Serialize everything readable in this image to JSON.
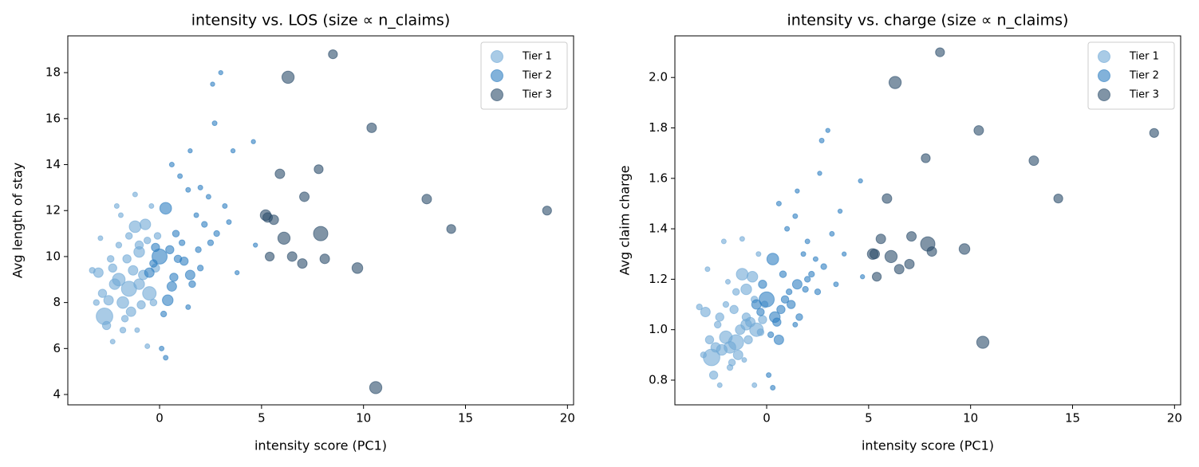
{
  "chart_data": [
    {
      "type": "scatter",
      "title": "intensity vs. LOS (size ∝ n_claims)",
      "x_label": "intensity score (PC1)",
      "y_label": "Avg length of stay",
      "xlim": [
        -4.5,
        20.3
      ],
      "ylim": [
        3.55,
        19.6
      ],
      "xticks": [
        0,
        5,
        10,
        15,
        20
      ],
      "yticks": [
        4,
        6,
        8,
        10,
        12,
        14,
        16,
        18
      ],
      "legend": "upper right",
      "alpha": 0.6,
      "series": [
        {
          "name": "Tier 1",
          "color": "#6fa8d6",
          "x": [
            -2.7,
            -1.2,
            -0.7,
            -1.0,
            -0.5,
            -1.5,
            -2.0,
            -1.8,
            -2.5,
            -3.0,
            -3.3,
            -2.9,
            -2.1,
            -1.2,
            -0.4,
            -1.5,
            -2.3,
            -1.0,
            -0.8,
            -2.6,
            -2.3,
            -1.8,
            -0.6,
            -1.1,
            -2.8,
            -1.4,
            -0.9,
            -0.3,
            -2.0,
            -1.6,
            -0.2,
            -3.1,
            -2.2,
            -1.3,
            -0.6,
            -1.7,
            -2.4,
            -0.1,
            -1.9,
            -1.0
          ],
          "values": [
            7.4,
            11.3,
            11.4,
            10.2,
            8.4,
            8.6,
            9.0,
            8.0,
            8.1,
            9.3,
            9.4,
            10.8,
            12.2,
            12.7,
            12.2,
            10.9,
            9.5,
            8.8,
            9.2,
            7.0,
            6.3,
            6.8,
            6.1,
            6.8,
            8.4,
            7.6,
            7.9,
            8.0,
            10.5,
            9.9,
            9.5,
            8.0,
            8.8,
            9.4,
            10.7,
            7.3,
            9.9,
            10.9,
            11.8,
            10.5
          ],
          "sizes": [
            120,
            60,
            50,
            50,
            80,
            100,
            70,
            60,
            40,
            40,
            15,
            10,
            10,
            10,
            10,
            20,
            30,
            50,
            40,
            30,
            10,
            15,
            10,
            10,
            30,
            40,
            30,
            20,
            15,
            30,
            30,
            15,
            50,
            40,
            20,
            20,
            20,
            20,
            10,
            30
          ]
        },
        {
          "name": "Tier 2",
          "color": "#2f7fc1",
          "x": [
            0.3,
            0.0,
            0.4,
            -0.5,
            1.2,
            1.5,
            2.2,
            2.7,
            3.0,
            2.6,
            1.5,
            0.6,
            1.0,
            3.6,
            4.6,
            2.0,
            1.4,
            0.8,
            1.9,
            2.8,
            3.8,
            0.2,
            0.1,
            0.3,
            -0.2,
            0.9,
            0.7,
            1.6,
            2.5,
            3.4,
            1.4,
            4.7,
            0.5,
            -0.3,
            1.1,
            2.0,
            3.2,
            2.4,
            0.6,
            1.8
          ],
          "values": [
            12.1,
            10.0,
            8.1,
            9.3,
            9.8,
            9.2,
            11.4,
            15.8,
            18.0,
            17.5,
            14.6,
            14.0,
            13.5,
            14.6,
            15.0,
            13.0,
            12.9,
            11.0,
            10.3,
            11.0,
            9.3,
            7.5,
            6.0,
            5.6,
            10.4,
            9.9,
            9.1,
            8.8,
            10.6,
            11.5,
            7.8,
            10.5,
            10.3,
            9.7,
            10.6,
            9.5,
            12.2,
            12.6,
            8.7,
            11.8
          ],
          "sizes": [
            60,
            100,
            50,
            40,
            30,
            40,
            15,
            10,
            8,
            8,
            8,
            10,
            10,
            8,
            8,
            10,
            10,
            20,
            15,
            15,
            8,
            15,
            10,
            10,
            30,
            25,
            30,
            20,
            15,
            10,
            10,
            8,
            30,
            25,
            15,
            15,
            10,
            10,
            40,
            10
          ]
        },
        {
          "name": "Tier 3",
          "color": "#2c4d6b",
          "x": [
            8.5,
            6.3,
            10.4,
            19.0,
            13.1,
            14.3,
            7.8,
            5.9,
            7.1,
            5.3,
            5.6,
            6.1,
            7.9,
            9.7,
            8.1,
            6.5,
            7.0,
            5.4,
            10.6,
            5.2
          ],
          "values": [
            18.8,
            17.8,
            15.6,
            12.0,
            12.5,
            11.2,
            13.8,
            13.6,
            12.6,
            11.7,
            11.6,
            10.8,
            11.0,
            9.5,
            9.9,
            10.0,
            9.7,
            10.0,
            4.3,
            11.8
          ],
          "sizes": [
            35,
            65,
            40,
            35,
            40,
            35,
            35,
            40,
            40,
            40,
            40,
            65,
            90,
            50,
            40,
            40,
            40,
            35,
            65,
            50
          ]
        }
      ]
    },
    {
      "type": "scatter",
      "title": "intensity vs. charge (size ∝ n_claims)",
      "x_label": "intensity score (PC1)",
      "y_label": "Avg claim charge",
      "xlim": [
        -4.5,
        20.3
      ],
      "ylim": [
        0.702,
        2.165
      ],
      "xticks": [
        0,
        5,
        10,
        15,
        20
      ],
      "yticks": [
        0.8,
        {
          "value": 1,
          "label": "1.0"
        },
        1.2,
        1.4,
        1.6,
        1.8,
        {
          "value": 2,
          "label": "2.0"
        }
      ],
      "legend": "upper right",
      "alpha": 0.6,
      "series": [
        {
          "name": "Tier 1",
          "color": "#6fa8d6",
          "x": [
            -2.7,
            -1.2,
            -0.7,
            -1.0,
            -0.5,
            -1.5,
            -2.0,
            -1.8,
            -2.5,
            -3.0,
            -3.3,
            -2.9,
            -2.1,
            -1.2,
            -0.4,
            -1.5,
            -2.3,
            -1.0,
            -0.8,
            -2.6,
            -2.3,
            -1.8,
            -0.6,
            -1.1,
            -2.8,
            -1.4,
            -0.9,
            -0.3,
            -2.0,
            -1.6,
            -0.2,
            -3.1,
            -2.2,
            -1.3,
            -0.6,
            -1.7,
            -2.4,
            -0.1,
            -1.9,
            -1.0
          ],
          "values": [
            0.89,
            1.22,
            1.21,
            1.16,
            1.0,
            0.95,
            0.97,
            0.93,
            0.93,
            1.07,
            1.09,
            1.24,
            1.35,
            1.36,
            1.3,
            1.15,
            1.05,
            1.02,
            1.03,
            0.82,
            0.78,
            0.85,
            0.78,
            0.88,
            0.96,
            0.9,
            0.96,
            0.99,
            1.1,
            1.08,
            1.04,
            0.9,
            0.92,
            1.0,
            1.12,
            0.87,
            1.02,
            1.1,
            1.19,
            1.05
          ],
          "sizes": [
            120,
            60,
            50,
            50,
            80,
            100,
            70,
            60,
            40,
            40,
            15,
            10,
            10,
            10,
            10,
            20,
            30,
            50,
            40,
            30,
            10,
            15,
            10,
            10,
            30,
            40,
            30,
            20,
            15,
            30,
            30,
            15,
            50,
            40,
            20,
            20,
            20,
            20,
            10,
            30
          ]
        },
        {
          "name": "Tier 2",
          "color": "#2f7fc1",
          "x": [
            0.3,
            0.0,
            0.4,
            -0.5,
            1.2,
            1.5,
            2.2,
            2.7,
            3.0,
            2.6,
            1.5,
            0.6,
            1.0,
            3.6,
            4.6,
            2.0,
            1.4,
            0.8,
            1.9,
            2.8,
            3.8,
            0.2,
            0.1,
            0.3,
            -0.2,
            0.9,
            0.7,
            1.6,
            2.5,
            3.4,
            1.4,
            4.7,
            0.5,
            -0.3,
            1.1,
            2.0,
            3.2,
            2.4,
            0.6,
            1.8
          ],
          "values": [
            1.28,
            1.12,
            1.05,
            1.1,
            1.1,
            1.18,
            1.22,
            1.75,
            1.79,
            1.62,
            1.55,
            1.5,
            1.4,
            1.47,
            1.59,
            1.35,
            1.45,
            1.22,
            1.16,
            1.25,
            1.3,
            0.98,
            0.82,
            0.77,
            1.18,
            1.12,
            1.08,
            1.05,
            1.15,
            1.18,
            1.02,
            1.21,
            1.03,
            1.07,
            1.15,
            1.2,
            1.38,
            1.28,
            0.96,
            1.3
          ],
          "sizes": [
            60,
            100,
            50,
            40,
            30,
            40,
            15,
            10,
            8,
            8,
            8,
            10,
            10,
            8,
            8,
            10,
            10,
            20,
            15,
            15,
            8,
            15,
            10,
            10,
            30,
            25,
            30,
            20,
            15,
            10,
            10,
            8,
            30,
            25,
            15,
            15,
            10,
            10,
            40,
            10
          ]
        },
        {
          "name": "Tier 3",
          "color": "#2c4d6b",
          "x": [
            8.5,
            6.3,
            10.4,
            19.0,
            13.1,
            14.3,
            7.8,
            5.9,
            7.1,
            5.3,
            5.6,
            6.1,
            7.9,
            9.7,
            8.1,
            6.5,
            7.0,
            5.4,
            10.6,
            5.2
          ],
          "values": [
            2.1,
            1.98,
            1.79,
            1.78,
            1.67,
            1.52,
            1.68,
            1.52,
            1.37,
            1.3,
            1.36,
            1.29,
            1.34,
            1.32,
            1.31,
            1.24,
            1.26,
            1.21,
            0.95,
            1.3
          ],
          "sizes": [
            35,
            65,
            40,
            35,
            40,
            35,
            35,
            40,
            40,
            40,
            40,
            65,
            90,
            50,
            40,
            40,
            40,
            35,
            65,
            50
          ]
        }
      ]
    }
  ]
}
